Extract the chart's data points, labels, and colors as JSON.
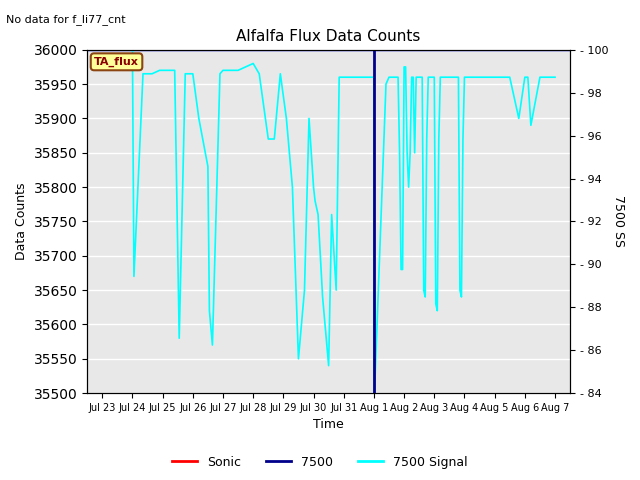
{
  "title": "Alfalfa Flux Data Counts",
  "subtitle": "No data for f_li77_cnt",
  "xlabel": "Time",
  "ylabel_left": "Data Counts",
  "ylabel_right": "7500 SS",
  "annotation": "TA_flux",
  "ylim_left": [
    35500,
    36000
  ],
  "ylim_right": [
    84,
    100
  ],
  "yticks_left": [
    35500,
    35550,
    35600,
    35650,
    35700,
    35750,
    35800,
    35850,
    35900,
    35950,
    36000
  ],
  "yticks_right": [
    84,
    86,
    88,
    90,
    92,
    94,
    96,
    98,
    100
  ],
  "x_tick_labels": [
    "Jul 23",
    "Jul 24",
    "Jul 25",
    "Jul 26",
    "Jul 27",
    "Jul 28",
    "Jul 29",
    "Jul 30",
    "Jul 31",
    "Aug 1",
    "Aug 2",
    "Aug 3",
    "Aug 4",
    "Aug 5",
    "Aug 6",
    "Aug 7"
  ],
  "vline_color": "#00008B",
  "cyan_line_color": "#00FFFF",
  "sonic_color": "#FF0000",
  "bg_color": "#E8E8E8",
  "figsize": [
    6.4,
    4.8
  ],
  "dpi": 100,
  "cyan_x": [
    0.0,
    0.8,
    1.0,
    1.05,
    1.35,
    1.65,
    1.9,
    2.0,
    2.4,
    2.45,
    2.55,
    2.75,
    3.0,
    3.2,
    3.5,
    3.55,
    3.65,
    3.9,
    4.0,
    4.5,
    5.0,
    5.2,
    5.5,
    5.7,
    5.9,
    6.1,
    6.3,
    6.5,
    6.7,
    6.85,
    7.0,
    7.05,
    7.15,
    7.3,
    7.5,
    7.6,
    7.75,
    7.85,
    8.0,
    8.5,
    9.0,
    9.01,
    9.02,
    9.4,
    9.5,
    9.8,
    9.85,
    9.9,
    9.95,
    10.0,
    10.05,
    10.1,
    10.15,
    10.2,
    10.25,
    10.3,
    10.35,
    10.4,
    10.6,
    10.65,
    10.7,
    10.75,
    10.8,
    10.9,
    11.0,
    11.05,
    11.1,
    11.15,
    11.2,
    11.3,
    11.5,
    11.7,
    11.8,
    11.85,
    11.9,
    11.95,
    12.0,
    12.1,
    12.2,
    12.5,
    12.8,
    13.0,
    13.1,
    13.2,
    13.3,
    13.5,
    13.8,
    14.0,
    14.1,
    14.2,
    14.5,
    14.8,
    15.0
  ],
  "cyan_y": [
    36000,
    36000,
    36000,
    35670,
    35965,
    35965,
    35970,
    35970,
    35970,
    35840,
    35580,
    35965,
    35965,
    35900,
    35830,
    35620,
    35570,
    35965,
    35970,
    35970,
    35980,
    35965,
    35870,
    35870,
    35965,
    35900,
    35800,
    35550,
    35650,
    35900,
    35800,
    35780,
    35760,
    35640,
    35540,
    35760,
    35650,
    35960,
    35960,
    35960,
    35960,
    35560,
    35500,
    35950,
    35960,
    35960,
    35850,
    35680,
    35680,
    35975,
    35975,
    35850,
    35800,
    35850,
    35960,
    35960,
    35850,
    35960,
    35960,
    35650,
    35640,
    35870,
    35960,
    35960,
    35960,
    35630,
    35620,
    35870,
    35960,
    35960,
    35960,
    35960,
    35960,
    35650,
    35640,
    35870,
    35960,
    35960,
    35960,
    35960,
    35960,
    35960,
    35960,
    35960,
    35960,
    35960,
    35900,
    35960,
    35960,
    35890,
    35960,
    35960,
    35960
  ]
}
